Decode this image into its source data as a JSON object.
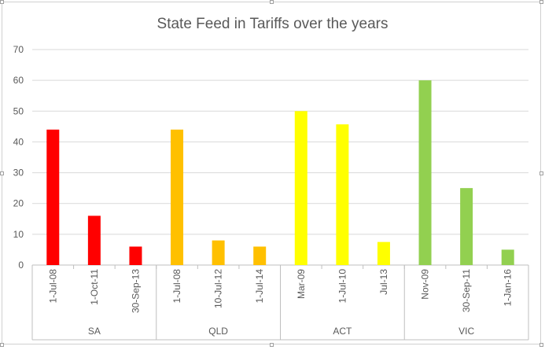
{
  "chart_data": {
    "type": "bar",
    "title": "State Feed in Tariffs over the years",
    "ylim": [
      0,
      70
    ],
    "yticks": [
      0,
      10,
      20,
      30,
      40,
      50,
      60,
      70
    ],
    "grid": true,
    "groups": [
      {
        "name": "SA",
        "color": "#ff0000",
        "bars": [
          {
            "label": "1-Jul-08",
            "value": 44
          },
          {
            "label": "1-Oct-11",
            "value": 16
          },
          {
            "label": "30-Sep-13",
            "value": 6
          }
        ]
      },
      {
        "name": "QLD",
        "color": "#ffc000",
        "bars": [
          {
            "label": "1-Jul-08",
            "value": 44
          },
          {
            "label": "10-Jul-12",
            "value": 8
          },
          {
            "label": "1-Jul-14",
            "value": 6
          }
        ]
      },
      {
        "name": "ACT",
        "color": "#ffff00",
        "bars": [
          {
            "label": "Mar-09",
            "value": 50
          },
          {
            "label": "1-Jul-10",
            "value": 45.7
          },
          {
            "label": "Jul-13",
            "value": 7.5
          }
        ]
      },
      {
        "name": "VIC",
        "color": "#92d050",
        "bars": [
          {
            "label": "Nov-09",
            "value": 60
          },
          {
            "label": "30-Sep-11",
            "value": 25
          },
          {
            "label": "1-Jan-16",
            "value": 5
          }
        ]
      }
    ]
  }
}
